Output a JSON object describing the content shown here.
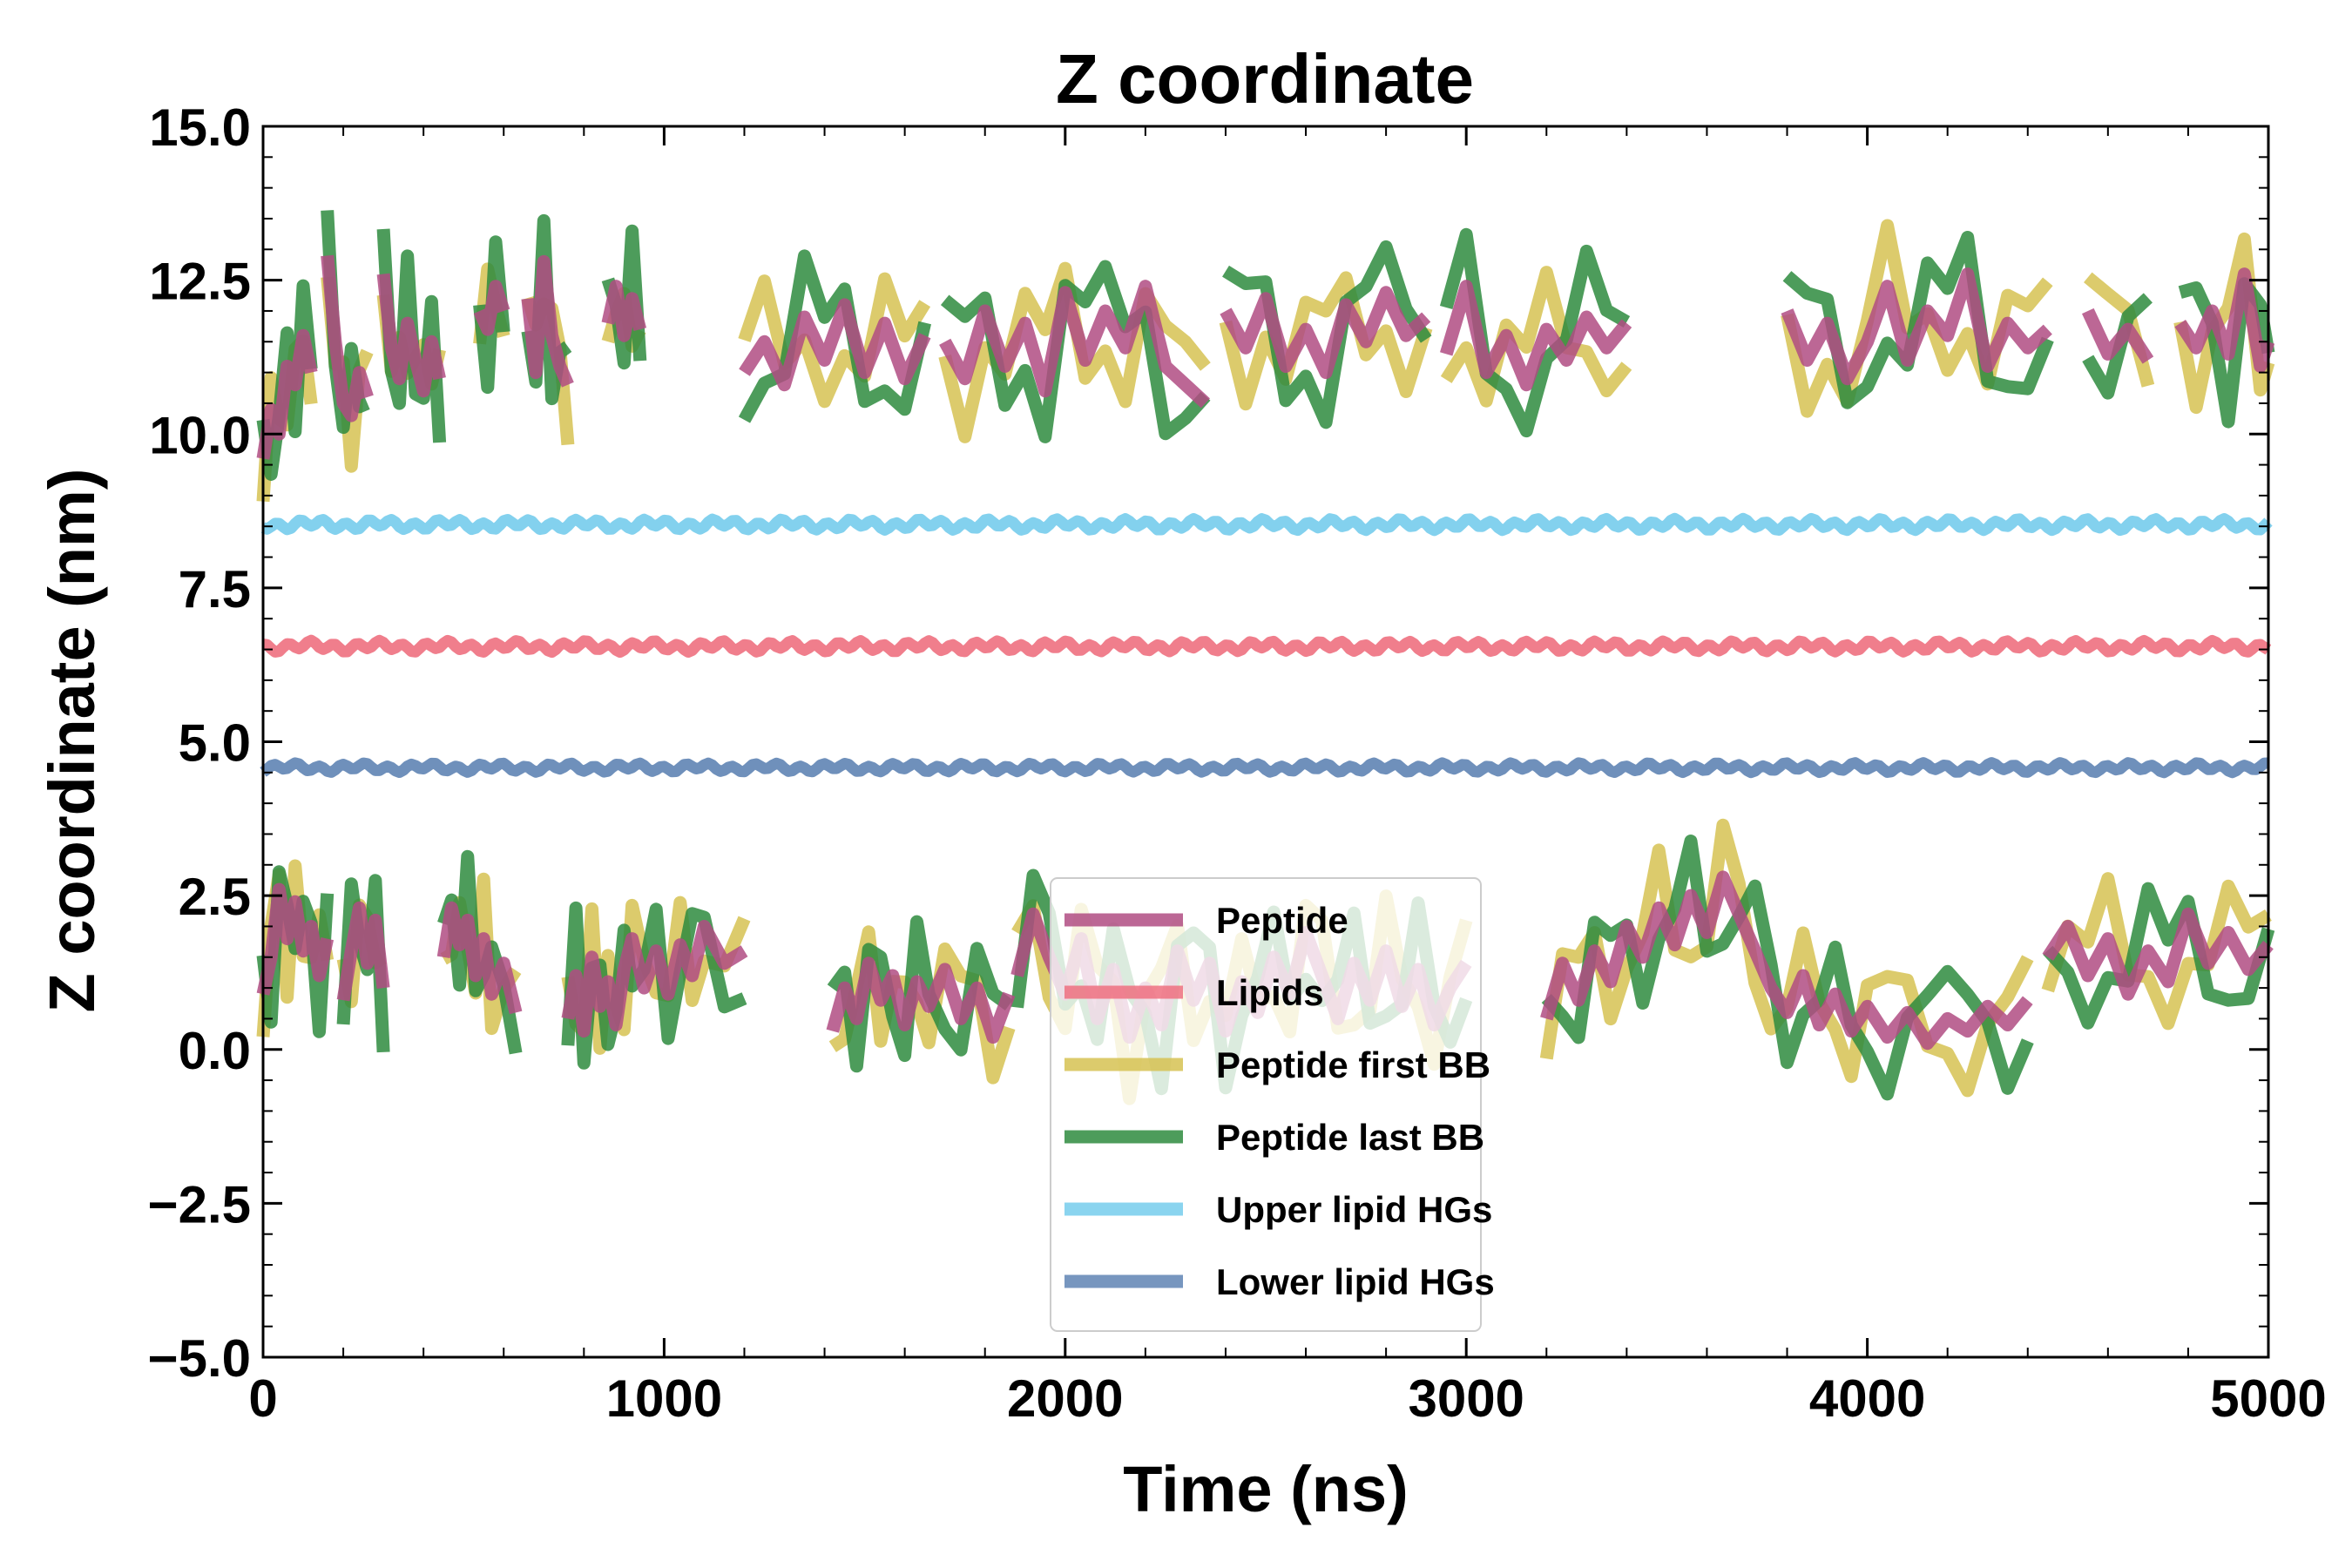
{
  "chart_data": {
    "type": "line",
    "title": "Z coordinate",
    "xlabel": "Time (ns)",
    "ylabel": "Z coordinate (nm)",
    "xlim": [
      0,
      5000
    ],
    "ylim": [
      -5.0,
      15.0
    ],
    "xticks": [
      0,
      1000,
      2000,
      3000,
      4000,
      5000
    ],
    "xtick_labels": [
      "0",
      "1000",
      "2000",
      "3000",
      "4000",
      "5000"
    ],
    "yticks": [
      -5.0,
      -2.5,
      0.0,
      2.5,
      5.0,
      7.5,
      10.0,
      12.5,
      15.0
    ],
    "ytick_labels": [
      "−5.0",
      "−2.5",
      "0.0",
      "2.5",
      "5.0",
      "7.5",
      "10.0",
      "12.5",
      "15.0"
    ],
    "grid": false,
    "legend_position": "center-bottom",
    "series": [
      {
        "name": "Peptide",
        "color": "#b04c82",
        "style": "upper-lower",
        "upper_segments": [
          {
            "x": [
              0,
              20,
              40,
              60,
              80,
              100,
              120
            ],
            "y": [
              9.6,
              10.4,
              10.0,
              11.1,
              10.8,
              11.6,
              11.0
            ]
          },
          {
            "x": [
              160,
              180,
              200,
              220,
              240,
              260
            ],
            "y": [
              12.9,
              11.5,
              10.5,
              10.3,
              11.0,
              10.6
            ]
          },
          {
            "x": [
              300,
              320,
              340,
              360,
              380,
              400,
              420,
              440
            ],
            "y": [
              12.6,
              11.4,
              10.9,
              11.8,
              11.2,
              10.7,
              11.5,
              10.9
            ]
          },
          {
            "x": [
              540,
              560,
              580,
              600
            ],
            "y": [
              12.0,
              11.7,
              12.4,
              12.0
            ]
          },
          {
            "x": [
              660,
              680,
              700,
              720,
              740,
              760
            ],
            "y": [
              12.2,
              11.0,
              12.8,
              11.6,
              11.1,
              10.8
            ]
          },
          {
            "x": [
              860,
              880,
              900,
              920,
              940
            ],
            "y": [
              11.8,
              12.4,
              11.6,
              12.2,
              11.7
            ]
          },
          {
            "x": [
              1200,
              1250,
              1300,
              1350,
              1400,
              1450,
              1500,
              1550,
              1600,
              1650
            ],
            "y": [
              11.0,
              11.5,
              10.8,
              11.9,
              11.2,
              12.1,
              11.0,
              11.8,
              10.9,
              11.6
            ]
          },
          {
            "x": [
              1700,
              1750,
              1800,
              1850,
              1900,
              1950,
              2000,
              2050,
              2100,
              2150,
              2200,
              2250,
              2300,
              2350
            ],
            "y": [
              11.5,
              10.9,
              12.0,
              11.1,
              11.8,
              10.7,
              12.3,
              11.2,
              12.0,
              11.4,
              12.4,
              11.1,
              10.8,
              10.5
            ]
          },
          {
            "x": [
              2400,
              2450,
              2500,
              2550,
              2600,
              2650,
              2700,
              2750,
              2800,
              2850,
              2900
            ],
            "y": [
              12.0,
              11.4,
              12.2,
              11.1,
              11.7,
              11.0,
              12.1,
              11.5,
              12.3,
              11.6,
              11.9
            ]
          },
          {
            "x": [
              2950,
              3000,
              3050,
              3100,
              3150,
              3200,
              3250,
              3300,
              3350,
              3400
            ],
            "y": [
              11.3,
              12.4,
              11.0,
              11.6,
              10.8,
              11.7,
              11.2,
              11.9,
              11.4,
              11.8
            ]
          },
          {
            "x": [
              3800,
              3850,
              3900,
              3950,
              4000,
              4050,
              4100,
              4150,
              4200,
              4250,
              4300,
              4350,
              4400,
              4450
            ],
            "y": [
              12.0,
              11.2,
              11.8,
              10.9,
              11.5,
              12.4,
              11.2,
              12.0,
              11.6,
              12.6,
              11.1,
              11.8,
              11.4,
              11.7
            ]
          },
          {
            "x": [
              4550,
              4600,
              4650,
              4700
            ],
            "y": [
              12.0,
              11.3,
              11.7,
              11.2
            ]
          },
          {
            "x": [
              4780,
              4820,
              4860,
              4900,
              4940,
              4980,
              5000
            ],
            "y": [
              11.8,
              11.4,
              12.0,
              11.3,
              12.6,
              11.1,
              11.5
            ]
          }
        ],
        "lower_segments": [
          {
            "x": [
              0,
              20,
              40,
              60,
              80,
              100,
              120,
              140,
              160
            ],
            "y": [
              0.9,
              1.5,
              2.6,
              1.8,
              2.4,
              1.6,
              2.0,
              1.2,
              1.8
            ]
          },
          {
            "x": [
              200,
              220,
              240,
              260,
              280,
              300
            ],
            "y": [
              0.8,
              1.6,
              2.3,
              1.4,
              2.1,
              1.0
            ]
          },
          {
            "x": [
              450,
              470,
              490,
              510,
              530,
              550,
              570,
              600,
              630
            ],
            "y": [
              1.5,
              2.3,
              1.7,
              2.1,
              1.2,
              1.8,
              0.9,
              1.4,
              0.6
            ]
          },
          {
            "x": [
              760,
              780,
              800,
              820,
              840,
              860,
              880,
              900,
              920,
              950,
              980,
              1010,
              1040,
              1070,
              1100,
              1150,
              1200
            ],
            "y": [
              0.5,
              1.2,
              0.3,
              1.5,
              0.7,
              1.1,
              0.4,
              1.3,
              1.8,
              1.0,
              1.6,
              0.9,
              1.7,
              1.2,
              2.0,
              1.4,
              1.6
            ]
          },
          {
            "x": [
              1420,
              1450,
              1480,
              1510,
              1540,
              1570,
              1600,
              1630,
              1660,
              1700,
              1740,
              1780,
              1820,
              1860
            ],
            "y": [
              0.3,
              1.0,
              0.5,
              1.4,
              0.8,
              1.2,
              0.4,
              1.1,
              0.7,
              1.3,
              0.5,
              1.0,
              0.2,
              0.9
            ]
          },
          {
            "x": [
              1880,
              1920,
              1960,
              2000,
              2040,
              2080,
              2120,
              2160,
              2200,
              2240,
              2280,
              2320,
              2360,
              2400,
              2440,
              2480,
              2520,
              2560,
              2600,
              2640,
              2680,
              2720,
              2760,
              2800,
              2840,
              2880,
              2920,
              2960,
              3000
            ],
            "y": [
              1.2,
              2.2,
              1.5,
              0.9,
              1.8,
              0.5,
              1.3,
              0.2,
              1.0,
              0.4,
              1.6,
              0.8,
              1.4,
              0.3,
              1.1,
              0.6,
              1.5,
              0.9,
              1.9,
              1.2,
              0.5,
              1.4,
              0.8,
              1.6,
              0.7,
              1.3,
              0.4,
              1.0,
              1.4
            ]
          },
          {
            "x": [
              3200,
              3240,
              3280,
              3320,
              3360,
              3400,
              3440,
              3480,
              3520,
              3560,
              3600,
              3640,
              3680,
              3720,
              3760,
              3800,
              3840,
              3880,
              3920,
              3960,
              4000,
              4050,
              4100,
              4150,
              4200,
              4250,
              4300,
              4350,
              4400
            ],
            "y": [
              0.5,
              1.4,
              0.8,
              1.6,
              1.1,
              2.0,
              1.5,
              2.3,
              1.7,
              2.5,
              1.9,
              2.8,
              2.2,
              1.6,
              1.0,
              0.6,
              1.2,
              0.4,
              0.9,
              0.3,
              0.7,
              0.2,
              0.6,
              0.1,
              0.5,
              0.3,
              0.7,
              0.4,
              0.8
            ]
          },
          {
            "x": [
              4450,
              4500,
              4550,
              4600,
              4650,
              4700,
              4750,
              4800,
              4850,
              4900,
              4950,
              5000
            ],
            "y": [
              1.5,
              2.0,
              1.2,
              1.8,
              0.9,
              1.6,
              1.1,
              2.2,
              1.4,
              1.9,
              1.3,
              1.7
            ]
          }
        ]
      },
      {
        "name": "Lipids",
        "color": "#ee7080",
        "style": "steady",
        "level": 6.55,
        "jitter": 0.06
      },
      {
        "name": "Peptide first BB",
        "color": "#d6c252",
        "style": "offset",
        "base": "Peptide",
        "amp": 1.0,
        "phase": 1.7
      },
      {
        "name": "Peptide last BB",
        "color": "#2e8b3e",
        "style": "offset",
        "base": "Peptide",
        "amp": 1.1,
        "phase": 4.1
      },
      {
        "name": "Upper lipid HGs",
        "color": "#76ccec",
        "style": "steady",
        "level": 8.53,
        "jitter": 0.06
      },
      {
        "name": "Lower lipid HGs",
        "color": "#5f84b4",
        "style": "steady",
        "level": 4.58,
        "jitter": 0.05
      }
    ],
    "draw_order": [
      "Upper lipid HGs",
      "Lipids",
      "Lower lipid HGs",
      "Peptide first BB",
      "Peptide last BB",
      "Peptide"
    ],
    "legend_order": [
      "Peptide",
      "Lipids",
      "Peptide first BB",
      "Peptide last BB",
      "Upper lipid HGs",
      "Lower lipid HGs"
    ]
  }
}
